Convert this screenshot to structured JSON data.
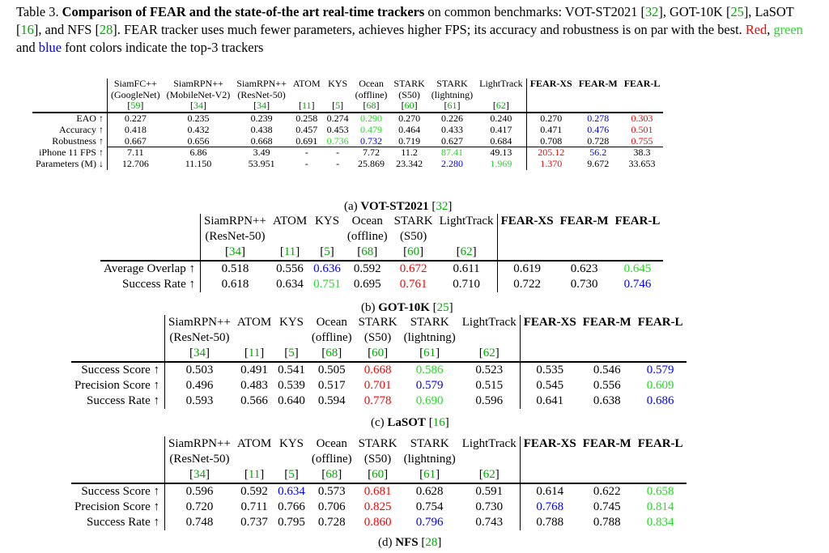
{
  "caption": {
    "label": "Table 3.",
    "bold": "Comparison of FEAR and the state-of-the art real-time trackers",
    "text1": " on common benchmarks: VOT-ST2021 [",
    "ref1": "32",
    "text2": "], GOT-10K [",
    "ref2": "25",
    "text3": "], LaSOT [",
    "ref3": "16",
    "text4": "], and NFS [",
    "ref4": "28",
    "text5": "]. FEAR tracker uses much fewer parameters, achieves higher FPS; its accuracy and robustness is on par with the best. ",
    "red_word": "Red",
    "comma": ", ",
    "green_word": "green",
    "and_word": " and ",
    "blue_word": "blue",
    "tail": " font colors indicate the top-3 trackers"
  },
  "colors": {
    "red": "#ff0000",
    "green": "#22dd22",
    "blue": "#0000ff",
    "cite": "#00aa00"
  },
  "table_a": {
    "caption_prefix": "(a) ",
    "caption_bold": "VOT-ST2021",
    "caption_ref": "32",
    "headers": [
      {
        "l1": "SiamFC++",
        "l2": "(GoogleNet)",
        "ref": "59"
      },
      {
        "l1": "SiamRPN++",
        "l2": "(MobileNet-V2)",
        "ref": "34"
      },
      {
        "l1": "SiamRPN++",
        "l2": "(ResNet-50)",
        "ref": "34"
      },
      {
        "l1": "ATOM",
        "l2": "",
        "ref": "11"
      },
      {
        "l1": "KYS",
        "l2": "",
        "ref": "5"
      },
      {
        "l1": "Ocean",
        "l2": "(offline)",
        "ref": "68"
      },
      {
        "l1": "STARK",
        "l2": "(S50)",
        "ref": "60"
      },
      {
        "l1": "STARK",
        "l2": "(lightning)",
        "ref": "61"
      },
      {
        "l1": "LightTrack",
        "l2": "",
        "ref": "62"
      },
      {
        "l1": "FEAR-XS",
        "l2": "",
        "ref": ""
      },
      {
        "l1": "FEAR-M",
        "l2": "",
        "ref": ""
      },
      {
        "l1": "FEAR-L",
        "l2": "",
        "ref": ""
      }
    ],
    "rows": [
      {
        "label": "EAO ↑",
        "group_start": false,
        "cells": [
          [
            "0.227",
            ""
          ],
          [
            "0.235",
            ""
          ],
          [
            "0.239",
            ""
          ],
          [
            "0.258",
            ""
          ],
          [
            "0.274",
            ""
          ],
          [
            "0.290",
            "green"
          ],
          [
            "0.270",
            ""
          ],
          [
            "0.226",
            ""
          ],
          [
            "0.240",
            ""
          ],
          [
            "0.270",
            ""
          ],
          [
            "0.278",
            "blue"
          ],
          [
            "0.303",
            "red"
          ]
        ]
      },
      {
        "label": "Accuracy ↑",
        "group_start": false,
        "cells": [
          [
            "0.418",
            ""
          ],
          [
            "0.432",
            ""
          ],
          [
            "0.438",
            ""
          ],
          [
            "0.457",
            ""
          ],
          [
            "0.453",
            ""
          ],
          [
            "0.479",
            "green"
          ],
          [
            "0.464",
            ""
          ],
          [
            "0.433",
            ""
          ],
          [
            "0.417",
            ""
          ],
          [
            "0.471",
            ""
          ],
          [
            "0.476",
            "blue"
          ],
          [
            "0.501",
            "red"
          ]
        ]
      },
      {
        "label": "Robustness ↑",
        "group_start": false,
        "cells": [
          [
            "0.667",
            ""
          ],
          [
            "0.656",
            ""
          ],
          [
            "0.668",
            ""
          ],
          [
            "0.691",
            ""
          ],
          [
            "0.736",
            "green"
          ],
          [
            "0.732",
            "blue"
          ],
          [
            "0.719",
            ""
          ],
          [
            "0.627",
            ""
          ],
          [
            "0.684",
            ""
          ],
          [
            "0.708",
            ""
          ],
          [
            "0.728",
            ""
          ],
          [
            "0.755",
            "red"
          ]
        ]
      },
      {
        "label": "iPhone 11 FPS ↑",
        "group_start": true,
        "cells": [
          [
            "7.11",
            ""
          ],
          [
            "6.86",
            ""
          ],
          [
            "3.49",
            ""
          ],
          [
            "-",
            ""
          ],
          [
            "-",
            ""
          ],
          [
            "7.72",
            ""
          ],
          [
            "11.2",
            ""
          ],
          [
            "87.41",
            "green"
          ],
          [
            "49.13",
            ""
          ],
          [
            "205.12",
            "red"
          ],
          [
            "56.2",
            "blue"
          ],
          [
            "38.3",
            ""
          ]
        ]
      },
      {
        "label": "Parameters (M) ↓",
        "group_start": false,
        "cells": [
          [
            "12.706",
            ""
          ],
          [
            "11.150",
            ""
          ],
          [
            "53.951",
            ""
          ],
          [
            "-",
            ""
          ],
          [
            "-",
            ""
          ],
          [
            "25.869",
            ""
          ],
          [
            "23.342",
            ""
          ],
          [
            "2.280",
            "blue"
          ],
          [
            "1.969",
            "green"
          ],
          [
            "1.370",
            "red"
          ],
          [
            "9.672",
            ""
          ],
          [
            "33.653",
            ""
          ]
        ]
      }
    ]
  },
  "table_b": {
    "caption_prefix": "(b) ",
    "caption_bold": "GOT-10K",
    "caption_ref": "25",
    "headers": [
      {
        "l1": "SiamRPN++",
        "l2": "(ResNet-50)",
        "ref": "34"
      },
      {
        "l1": "ATOM",
        "l2": "",
        "ref": "11"
      },
      {
        "l1": "KYS",
        "l2": "",
        "ref": "5"
      },
      {
        "l1": "Ocean",
        "l2": "(offline)",
        "ref": "68"
      },
      {
        "l1": "STARK",
        "l2": "(S50)",
        "ref": "60"
      },
      {
        "l1": "LightTrack",
        "l2": "",
        "ref": "62"
      },
      {
        "l1": "FEAR-XS",
        "l2": "",
        "ref": ""
      },
      {
        "l1": "FEAR-M",
        "l2": "",
        "ref": ""
      },
      {
        "l1": "FEAR-L",
        "l2": "",
        "ref": ""
      }
    ],
    "rows": [
      {
        "label": "Average Overlap ↑",
        "group_start": false,
        "cells": [
          [
            "0.518",
            ""
          ],
          [
            "0.556",
            ""
          ],
          [
            "0.636",
            "blue"
          ],
          [
            "0.592",
            ""
          ],
          [
            "0.672",
            "red"
          ],
          [
            "0.611",
            ""
          ],
          [
            "0.619",
            ""
          ],
          [
            "0.623",
            ""
          ],
          [
            "0.645",
            "green"
          ]
        ]
      },
      {
        "label": "Success Rate ↑",
        "group_start": false,
        "cells": [
          [
            "0.618",
            ""
          ],
          [
            "0.634",
            ""
          ],
          [
            "0.751",
            "green"
          ],
          [
            "0.695",
            ""
          ],
          [
            "0.761",
            "red"
          ],
          [
            "0.710",
            ""
          ],
          [
            "0.722",
            ""
          ],
          [
            "0.730",
            ""
          ],
          [
            "0.746",
            "blue"
          ]
        ]
      }
    ]
  },
  "table_c": {
    "caption_prefix": "(c) ",
    "caption_bold": "LaSOT",
    "caption_ref": "16",
    "headers": [
      {
        "l1": "SiamRPN++",
        "l2": "(ResNet-50)",
        "ref": "34"
      },
      {
        "l1": "ATOM",
        "l2": "",
        "ref": "11"
      },
      {
        "l1": "KYS",
        "l2": "",
        "ref": "5"
      },
      {
        "l1": "Ocean",
        "l2": "(offline)",
        "ref": "68"
      },
      {
        "l1": "STARK",
        "l2": "(S50)",
        "ref": "60"
      },
      {
        "l1": "STARK",
        "l2": "(lightning)",
        "ref": "61"
      },
      {
        "l1": "LightTrack",
        "l2": "",
        "ref": "62"
      },
      {
        "l1": "FEAR-XS",
        "l2": "",
        "ref": ""
      },
      {
        "l1": "FEAR-M",
        "l2": "",
        "ref": ""
      },
      {
        "l1": "FEAR-L",
        "l2": "",
        "ref": ""
      }
    ],
    "rows": [
      {
        "label": "Success Score ↑",
        "group_start": false,
        "cells": [
          [
            "0.503",
            ""
          ],
          [
            "0.491",
            ""
          ],
          [
            "0.541",
            ""
          ],
          [
            "0.505",
            ""
          ],
          [
            "0.668",
            "red"
          ],
          [
            "0.586",
            "green"
          ],
          [
            "0.523",
            ""
          ],
          [
            "0.535",
            ""
          ],
          [
            "0.546",
            ""
          ],
          [
            "0.579",
            "blue"
          ]
        ]
      },
      {
        "label": "Precision Score ↑",
        "group_start": false,
        "cells": [
          [
            "0.496",
            ""
          ],
          [
            "0.483",
            ""
          ],
          [
            "0.539",
            ""
          ],
          [
            "0.517",
            ""
          ],
          [
            "0.701",
            "red"
          ],
          [
            "0.579",
            "blue"
          ],
          [
            "0.515",
            ""
          ],
          [
            "0.545",
            ""
          ],
          [
            "0.556",
            ""
          ],
          [
            "0.609",
            "green"
          ]
        ]
      },
      {
        "label": "Success Rate ↑",
        "group_start": false,
        "cells": [
          [
            "0.593",
            ""
          ],
          [
            "0.566",
            ""
          ],
          [
            "0.640",
            ""
          ],
          [
            "0.594",
            ""
          ],
          [
            "0.778",
            "red"
          ],
          [
            "0.690",
            "green"
          ],
          [
            "0.596",
            ""
          ],
          [
            "0.641",
            ""
          ],
          [
            "0.638",
            ""
          ],
          [
            "0.686",
            "blue"
          ]
        ]
      }
    ]
  },
  "table_d": {
    "caption_prefix": "(d) ",
    "caption_bold": "NFS",
    "caption_ref": "28",
    "headers": [
      {
        "l1": "SiamRPN++",
        "l2": "(ResNet-50)",
        "ref": "34"
      },
      {
        "l1": "ATOM",
        "l2": "",
        "ref": "11"
      },
      {
        "l1": "KYS",
        "l2": "",
        "ref": "5"
      },
      {
        "l1": "Ocean",
        "l2": "(offline)",
        "ref": "68"
      },
      {
        "l1": "STARK",
        "l2": "(S50)",
        "ref": "60"
      },
      {
        "l1": "STARK",
        "l2": "(lightning)",
        "ref": "61"
      },
      {
        "l1": "LightTrack",
        "l2": "",
        "ref": "62"
      },
      {
        "l1": "FEAR-XS",
        "l2": "",
        "ref": ""
      },
      {
        "l1": "FEAR-M",
        "l2": "",
        "ref": ""
      },
      {
        "l1": "FEAR-L",
        "l2": "",
        "ref": ""
      }
    ],
    "rows": [
      {
        "label": "Success Score ↑",
        "group_start": false,
        "cells": [
          [
            "0.596",
            ""
          ],
          [
            "0.592",
            ""
          ],
          [
            "0.634",
            "blue"
          ],
          [
            "0.573",
            ""
          ],
          [
            "0.681",
            "red"
          ],
          [
            "0.628",
            ""
          ],
          [
            "0.591",
            ""
          ],
          [
            "0.614",
            ""
          ],
          [
            "0.622",
            ""
          ],
          [
            "0.658",
            "green"
          ]
        ]
      },
      {
        "label": "Precision Score ↑",
        "group_start": false,
        "cells": [
          [
            "0.720",
            ""
          ],
          [
            "0.711",
            ""
          ],
          [
            "0.766",
            ""
          ],
          [
            "0.706",
            ""
          ],
          [
            "0.825",
            "red"
          ],
          [
            "0.754",
            ""
          ],
          [
            "0.730",
            ""
          ],
          [
            "0.768",
            "blue"
          ],
          [
            "0.745",
            ""
          ],
          [
            "0.814",
            "green"
          ]
        ]
      },
      {
        "label": "Success Rate ↑",
        "group_start": false,
        "cells": [
          [
            "0.748",
            ""
          ],
          [
            "0.737",
            ""
          ],
          [
            "0.795",
            ""
          ],
          [
            "0.728",
            ""
          ],
          [
            "0.860",
            "red"
          ],
          [
            "0.796",
            "blue"
          ],
          [
            "0.743",
            ""
          ],
          [
            "0.788",
            ""
          ],
          [
            "0.788",
            ""
          ],
          [
            "0.834",
            "green"
          ]
        ]
      }
    ]
  }
}
